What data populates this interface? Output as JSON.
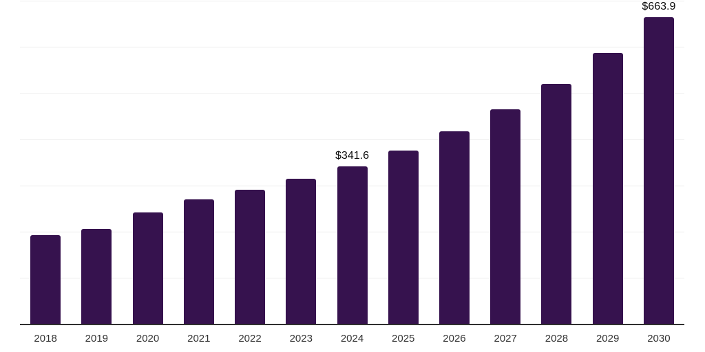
{
  "chart": {
    "background": "#ffffff",
    "bar_color": "#36124E",
    "grid_color": "#ededed",
    "axis_color": "#2f2f2f",
    "tick_label_color": "#333333",
    "value_label_color": "#0a0a0a"
  },
  "chart_data": {
    "type": "bar",
    "title": "",
    "xlabel": "",
    "ylabel": "",
    "categories": [
      "2018",
      "2019",
      "2020",
      "2021",
      "2022",
      "2023",
      "2024",
      "2025",
      "2026",
      "2027",
      "2028",
      "2029",
      "2030"
    ],
    "values": [
      192.8,
      205.1,
      241.3,
      270.0,
      290.4,
      314.6,
      341.6,
      375.4,
      416.9,
      464.8,
      519.7,
      586.9,
      663.9
    ],
    "data_labels": [
      {
        "category": "2024",
        "text": "$341.6"
      },
      {
        "category": "2030",
        "text": "$663.9"
      }
    ],
    "value_prefix": "$",
    "ylim": [
      0,
      700
    ],
    "grid_step": 100,
    "grid": "horizontal",
    "legend": "none",
    "y_axis_labels_visible": false
  }
}
